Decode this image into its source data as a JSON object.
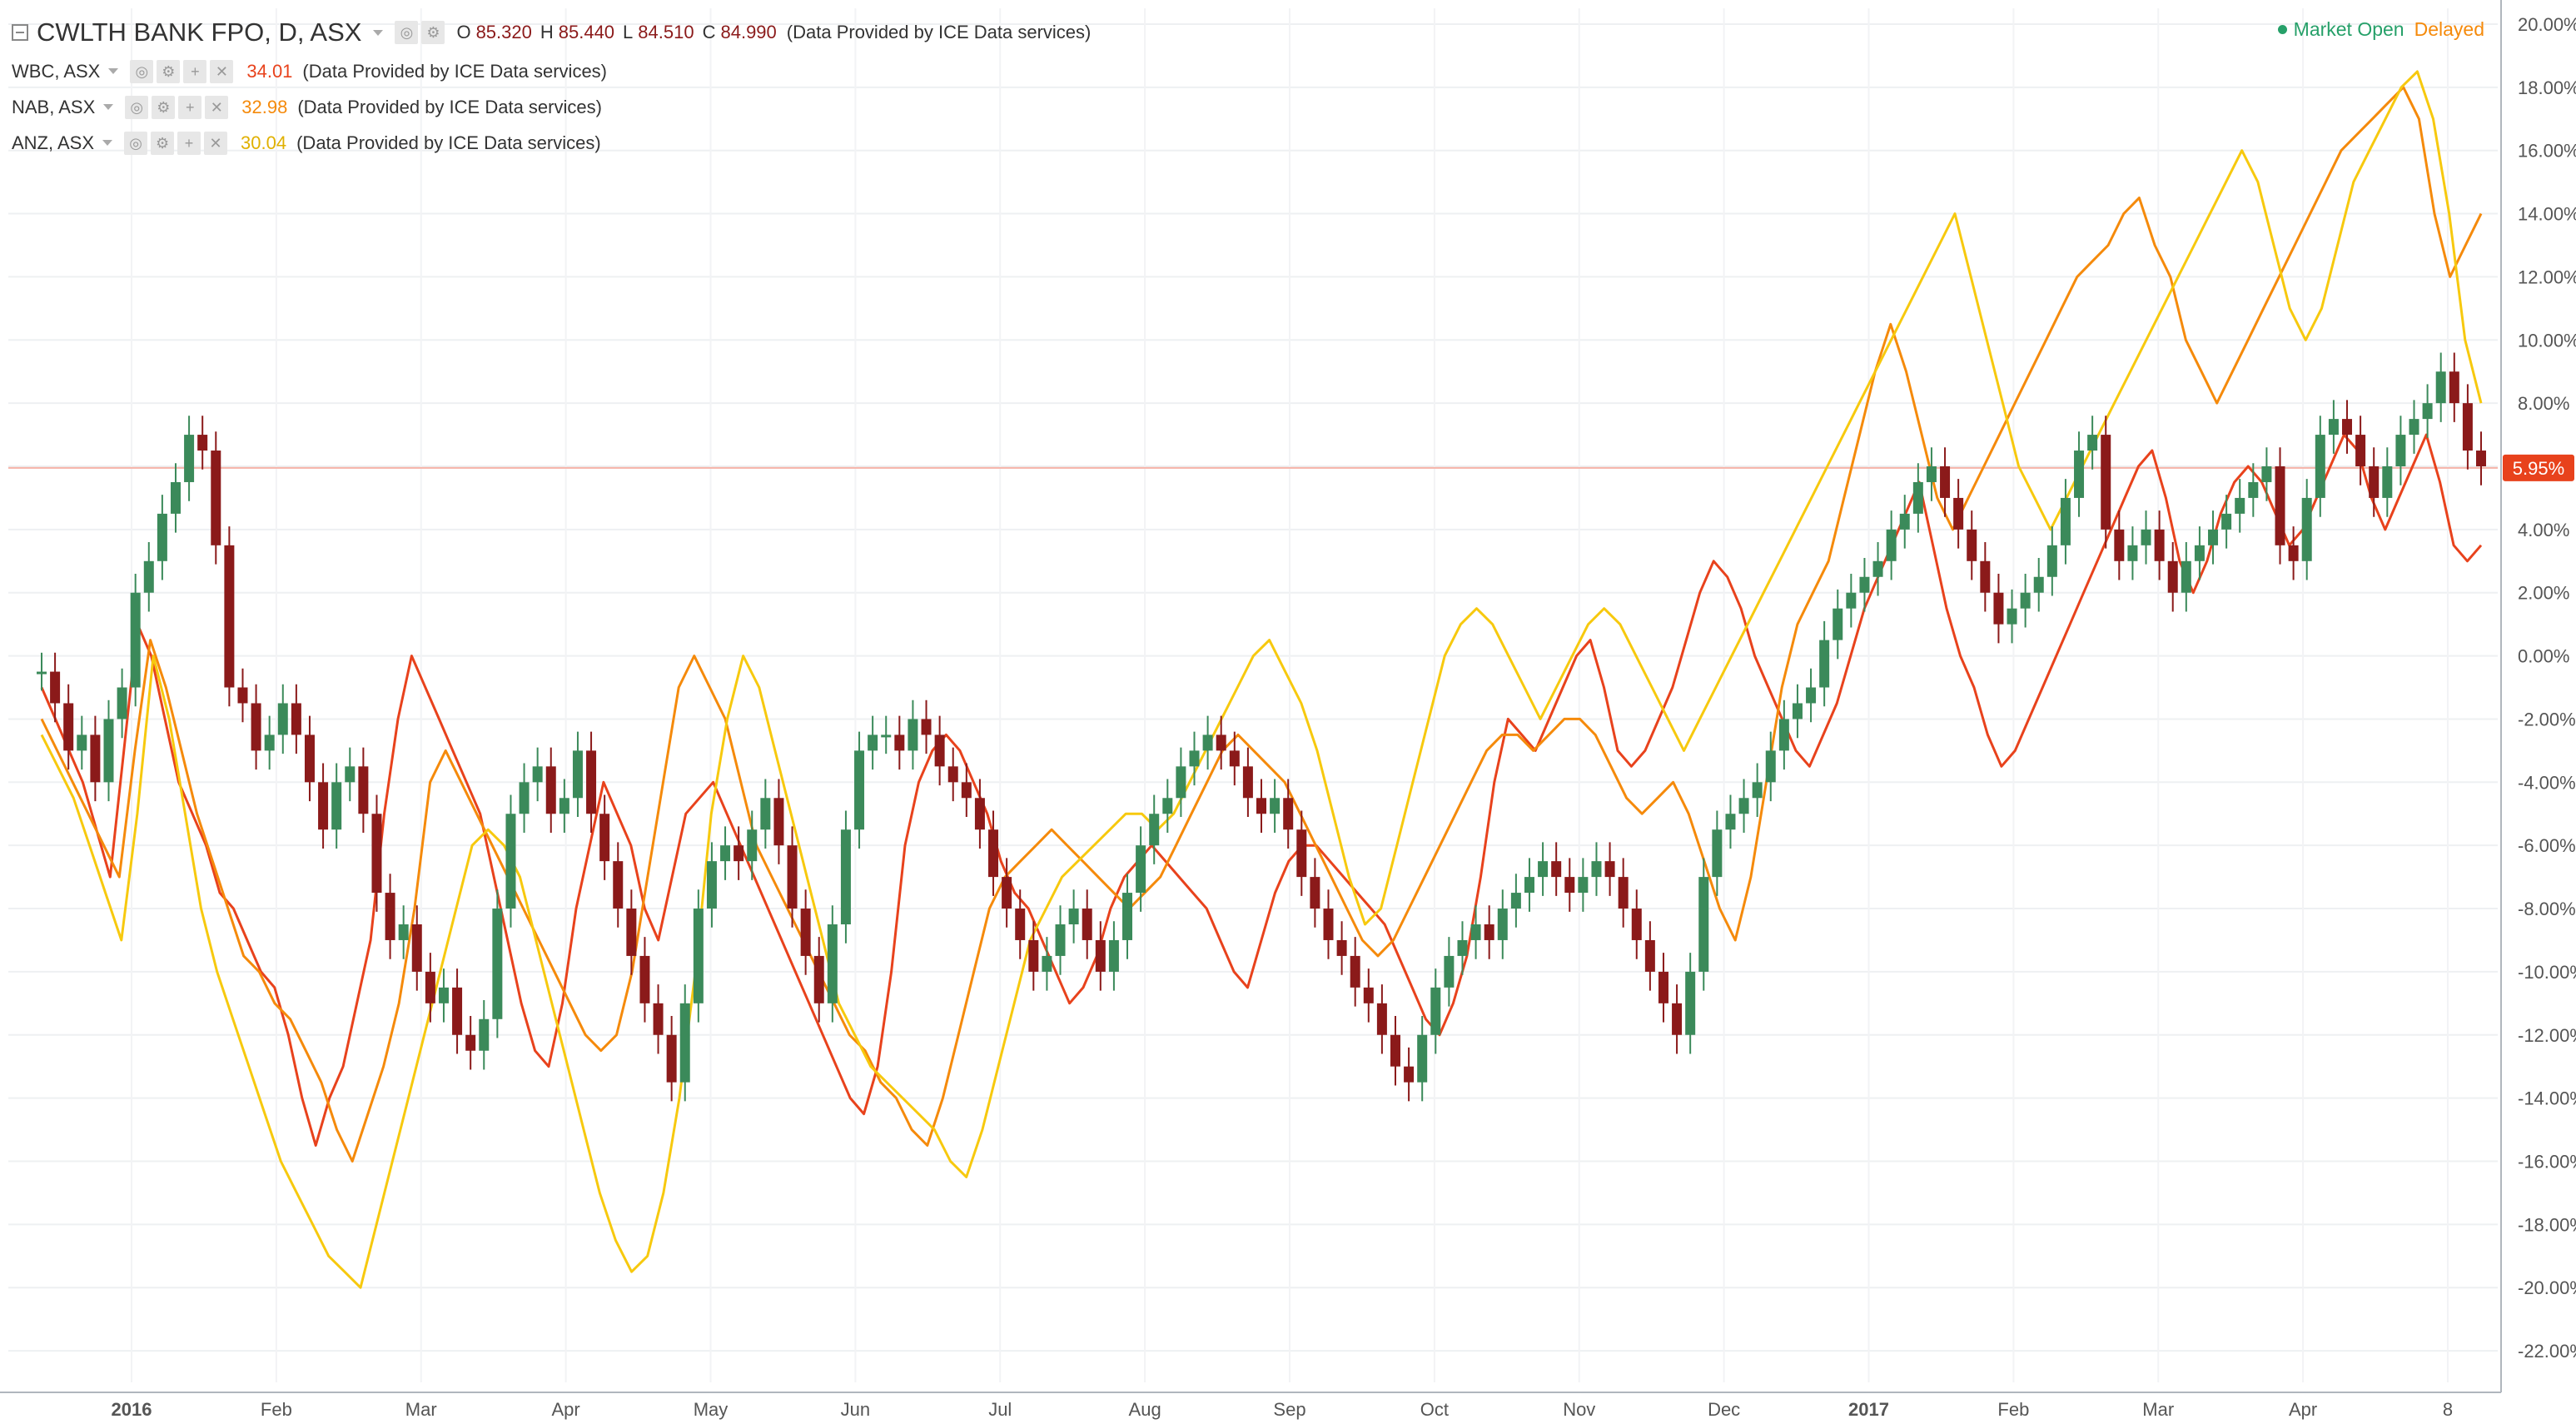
{
  "header": {
    "main_title": "CWLTH BANK FPO, D, ASX",
    "ohlc": [
      {
        "label": "O",
        "value": "85.320"
      },
      {
        "label": "H",
        "value": "85.440"
      },
      {
        "label": "L",
        "value": "84.510"
      },
      {
        "label": "C",
        "value": "84.990"
      }
    ],
    "provider": "(Data Provided by ICE Data services)",
    "comparisons": [
      {
        "symbol": "WBC, ASX",
        "value": "34.01",
        "color": "#e8421c",
        "provider": "(Data Provided by ICE Data services)"
      },
      {
        "symbol": "NAB, ASX",
        "value": "32.98",
        "color": "#f58a0b",
        "provider": "(Data Provided by ICE Data services)"
      },
      {
        "symbol": "ANZ, ASX",
        "value": "30.04",
        "color": "#f7c90e",
        "provider": "(Data Provided by ICE Data services)"
      }
    ],
    "status": {
      "market_open": "Market Open",
      "delayed": "Delayed",
      "open_color": "#26a069",
      "delayed_color": "#f58a0b"
    }
  },
  "chart_data": {
    "type": "line",
    "y_unit": "%",
    "ylim": [
      -23,
      20.5
    ],
    "y_ticks": [
      "20.00%",
      "18.00%",
      "16.00%",
      "14.00%",
      "12.00%",
      "10.00%",
      "8.00%",
      "6.00%",
      "4.00%",
      "2.00%",
      "0.00%",
      "-2.00%",
      "-4.00%",
      "-6.00%",
      "-8.00%",
      "-10.00%",
      "-12.00%",
      "-14.00%",
      "-16.00%",
      "-18.00%",
      "-20.00%",
      "-22.00%"
    ],
    "x_ticks": [
      "2016",
      "Feb",
      "Mar",
      "Apr",
      "May",
      "Jun",
      "Jul",
      "Aug",
      "Sep",
      "Oct",
      "Nov",
      "Dec",
      "2017",
      "Feb",
      "Mar",
      "Apr",
      "8"
    ],
    "x_tick_bold": [
      "2016",
      "2017"
    ],
    "last_value_label": "5.95%",
    "last_value": 5.95,
    "grid": true,
    "series": [
      {
        "type": "candlestick",
        "color_up": "#3b8a5a",
        "color_down": "#8b1a1a",
        "values": [
          -0.5,
          -1.5,
          -3,
          -2.5,
          -4,
          -2,
          -1,
          2,
          3,
          4.5,
          5.5,
          7,
          6.5,
          3.5,
          -1,
          -1.5,
          -3,
          -2.5,
          -1.5,
          -2.5,
          -4,
          -5.5,
          -4,
          -3.5,
          -5,
          -7.5,
          -9,
          -8.5,
          -10,
          -11,
          -10.5,
          -12,
          -12.5,
          -11.5,
          -8,
          -5,
          -4,
          -3.5,
          -5,
          -4.5,
          -3,
          -5,
          -6.5,
          -8,
          -9.5,
          -11,
          -12,
          -13.5,
          -11,
          -8,
          -6.5,
          -6,
          -6.5,
          -5.5,
          -4.5,
          -6,
          -8,
          -9.5,
          -11,
          -8.5,
          -5.5,
          -3,
          -2.5,
          -2.5,
          -3,
          -2,
          -2.5,
          -3.5,
          -4,
          -4.5,
          -5.5,
          -7,
          -8,
          -9,
          -10,
          -9.5,
          -8.5,
          -8,
          -9,
          -10,
          -9,
          -7.5,
          -6,
          -5,
          -4.5,
          -3.5,
          -3,
          -2.5,
          -3,
          -3.5,
          -4.5,
          -5,
          -4.5,
          -5.5,
          -7,
          -8,
          -9,
          -9.5,
          -10.5,
          -11,
          -12,
          -13,
          -13.5,
          -12,
          -10.5,
          -9.5,
          -9,
          -8.5,
          -9,
          -8,
          -7.5,
          -7,
          -6.5,
          -7,
          -7.5,
          -7,
          -6.5,
          -7,
          -8,
          -9,
          -10,
          -11,
          -12,
          -10,
          -7,
          -5.5,
          -5,
          -4.5,
          -4,
          -3,
          -2,
          -1.5,
          -1,
          0.5,
          1.5,
          2,
          2.5,
          3,
          4,
          4.5,
          5.5,
          6,
          5,
          4,
          3,
          2,
          1,
          1.5,
          2,
          2.5,
          3.5,
          5,
          6.5,
          7,
          4,
          3,
          3.5,
          4,
          3,
          2,
          3,
          3.5,
          4,
          4.5,
          5,
          5.5,
          6,
          3.5,
          3,
          5,
          7,
          7.5,
          7,
          6,
          5,
          6,
          7,
          7.5,
          8,
          9,
          8,
          6.5,
          6
        ]
      },
      {
        "name": "WBC, ASX",
        "color": "#e8421c",
        "values": [
          -1,
          -2,
          -3,
          -4,
          -5.5,
          -7,
          -3,
          1,
          0,
          -2,
          -4,
          -5,
          -6,
          -7.5,
          -8,
          -9,
          -10,
          -10.5,
          -12,
          -14,
          -15.5,
          -14,
          -13,
          -11,
          -9,
          -5,
          -2,
          0,
          -1,
          -2,
          -3,
          -4,
          -5,
          -7,
          -9,
          -11,
          -12.5,
          -13,
          -11,
          -8,
          -6,
          -4,
          -5,
          -6,
          -8,
          -9,
          -7,
          -5,
          -4.5,
          -4,
          -5,
          -6,
          -7,
          -8,
          -9,
          -10,
          -11,
          -12,
          -13,
          -14,
          -14.5,
          -13,
          -10,
          -6,
          -4,
          -3,
          -2.5,
          -3,
          -4,
          -5,
          -6.5,
          -7.5,
          -8,
          -9,
          -10,
          -11,
          -10.5,
          -9.5,
          -8,
          -7,
          -6.5,
          -6,
          -6.5,
          -7,
          -7.5,
          -8,
          -9,
          -10,
          -10.5,
          -9,
          -7.5,
          -6.5,
          -6,
          -6,
          -6.5,
          -7,
          -7.5,
          -8,
          -8.5,
          -9.5,
          -10.5,
          -11.5,
          -12,
          -11,
          -9.5,
          -7,
          -4,
          -2,
          -2.5,
          -3,
          -2,
          -1,
          0,
          0.5,
          -1,
          -3,
          -3.5,
          -3,
          -2,
          -1,
          0.5,
          2,
          3,
          2.5,
          1.5,
          0,
          -1,
          -2,
          -3,
          -3.5,
          -2.5,
          -1.5,
          0,
          1.5,
          2.5,
          3.5,
          4.5,
          5.5,
          3.5,
          1.5,
          0,
          -1,
          -2.5,
          -3.5,
          -3,
          -2,
          -1,
          0,
          1,
          2,
          3,
          4,
          5,
          6,
          6.5,
          5,
          3,
          2,
          3,
          4.5,
          5.5,
          6,
          5.5,
          4.5,
          3.5,
          4,
          5,
          6,
          7,
          6.5,
          5,
          4,
          5,
          6,
          7,
          5.5,
          3.5,
          3,
          3.5
        ]
      },
      {
        "name": "NAB, ASX",
        "color": "#f58a0b",
        "values": [
          -2,
          -3,
          -4,
          -5,
          -6,
          -7,
          -3,
          0.5,
          -1,
          -3,
          -5,
          -6.5,
          -8,
          -9.5,
          -10,
          -11,
          -11.5,
          -12.5,
          -13.5,
          -15,
          -16,
          -14.5,
          -13,
          -11,
          -8,
          -4,
          -3,
          -4,
          -5,
          -6,
          -7,
          -8,
          -9,
          -10,
          -11,
          -12,
          -12.5,
          -12,
          -10,
          -7,
          -4,
          -1,
          0,
          -1,
          -2,
          -4,
          -6,
          -7,
          -8,
          -9,
          -10,
          -11,
          -12,
          -12.5,
          -13.5,
          -14,
          -15,
          -15.5,
          -14,
          -12,
          -10,
          -8,
          -7,
          -6.5,
          -6,
          -5.5,
          -6,
          -6.5,
          -7,
          -7.5,
          -8,
          -7.5,
          -7,
          -6,
          -5,
          -4,
          -3,
          -2.5,
          -3,
          -3.5,
          -4,
          -5,
          -6,
          -7,
          -8,
          -9,
          -9.5,
          -9,
          -8,
          -7,
          -6,
          -5,
          -4,
          -3,
          -2.5,
          -2.5,
          -3,
          -2.5,
          -2,
          -2,
          -2.5,
          -3.5,
          -4.5,
          -5,
          -4.5,
          -4,
          -5,
          -6.5,
          -8,
          -9,
          -7,
          -4,
          -1,
          1,
          2,
          3,
          5,
          7,
          9,
          10.5,
          9,
          7,
          5,
          4,
          5,
          6,
          7,
          8,
          9,
          10,
          11,
          12,
          12.5,
          13,
          14,
          14.5,
          13,
          12,
          10,
          9,
          8,
          9,
          10,
          11,
          12,
          13,
          14,
          15,
          16,
          16.5,
          17,
          17.5,
          18,
          17,
          14,
          12,
          13,
          14
        ]
      },
      {
        "name": "ANZ, ASX",
        "color": "#f7c90e",
        "values": [
          -2.5,
          -3.5,
          -4.5,
          -6,
          -7.5,
          -9,
          -5,
          0,
          -2,
          -5,
          -8,
          -10,
          -11.5,
          -13,
          -14.5,
          -16,
          -17,
          -18,
          -19,
          -19.5,
          -20,
          -18,
          -16,
          -14,
          -12,
          -10,
          -8,
          -6,
          -5.5,
          -6,
          -7,
          -9,
          -11,
          -13,
          -15,
          -17,
          -18.5,
          -19.5,
          -19,
          -17,
          -14,
          -10,
          -5,
          -2,
          0,
          -1,
          -3,
          -5,
          -7,
          -9,
          -11,
          -12,
          -13,
          -13.5,
          -14,
          -14.5,
          -15,
          -16,
          -16.5,
          -15,
          -13,
          -11,
          -9,
          -8,
          -7,
          -6.5,
          -6,
          -5.5,
          -5,
          -5,
          -5.5,
          -5,
          -4,
          -3,
          -2,
          -1,
          0,
          0.5,
          -0.5,
          -1.5,
          -3,
          -5,
          -7,
          -8.5,
          -8,
          -6,
          -4,
          -2,
          0,
          1,
          1.5,
          1,
          0,
          -1,
          -2,
          -1,
          0,
          1,
          1.5,
          1,
          0,
          -1,
          -2,
          -3,
          -2,
          -1,
          0,
          1,
          2,
          3,
          4,
          5,
          6,
          7,
          8,
          9,
          10,
          11,
          12,
          13,
          14,
          12,
          10,
          8,
          6,
          5,
          4,
          5,
          6,
          7,
          8,
          9,
          10,
          11,
          12,
          13,
          14,
          15,
          16,
          15,
          13,
          11,
          10,
          11,
          13,
          15,
          16,
          17,
          18,
          18.5,
          17,
          14,
          10,
          8
        ]
      }
    ]
  }
}
